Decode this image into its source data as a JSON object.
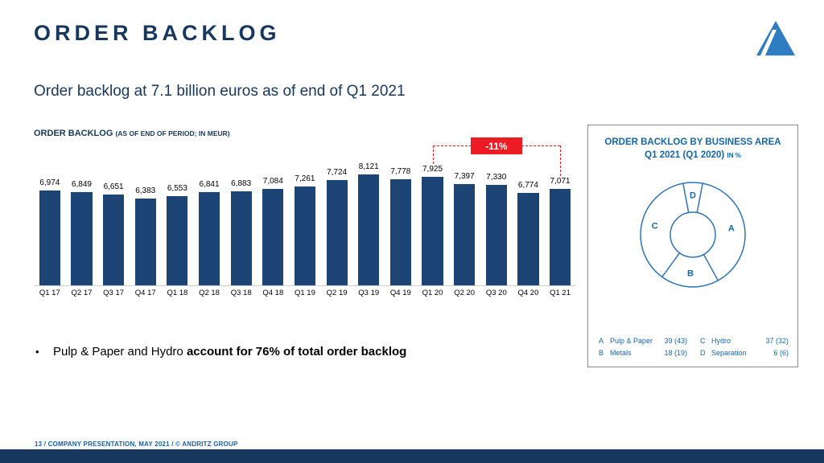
{
  "slide": {
    "title": "ORDER BACKLOG",
    "subtitle": "Order backlog at 7.1 billion euros as of end of Q1 2021",
    "bullet": {
      "text": "Pulp & Paper and Hydro ",
      "bold_text": "account for 76% of total order backlog"
    },
    "footer": "13 / COMPANY PRESENTATION, MAY 2021 / © ANDRITZ GROUP"
  },
  "colors": {
    "navy": "#17375e",
    "bar_blue": "#1c4474",
    "panel_blue": "#1566ab",
    "donut_stroke": "#2f74b8",
    "red": "#ed1c24"
  },
  "chart_data": [
    {
      "type": "bar",
      "title": "ORDER BACKLOG",
      "title_suffix": "(AS OF END OF PERIOD; IN MEUR)",
      "categories": [
        "Q1 17",
        "Q2 17",
        "Q3 17",
        "Q4 17",
        "Q1 18",
        "Q2 18",
        "Q3 18",
        "Q4 18",
        "Q1 19",
        "Q2 19",
        "Q3 19",
        "Q4 19",
        "Q1 20",
        "Q2 20",
        "Q3 20",
        "Q4 20",
        "Q1 21"
      ],
      "values": [
        6974,
        6849,
        6651,
        6383,
        6553,
        6841,
        6883,
        7084,
        7261,
        7724,
        8121,
        7778,
        7925,
        7397,
        7330,
        6774,
        7071
      ],
      "ylim": [
        0,
        8121
      ],
      "grid": false,
      "legend_position": "none",
      "annotation": {
        "label": "-11%",
        "from_category": "Q1 20",
        "to_category": "Q1 21"
      }
    },
    {
      "type": "pie",
      "donut": true,
      "title": "ORDER BACKLOG BY BUSINESS AREA",
      "subtitle": "Q1 2021 (Q1 2020)",
      "subtitle_suffix": "IN %",
      "segments": [
        {
          "key": "A",
          "name": "Pulp & Paper",
          "value": 39,
          "prev_value": 43
        },
        {
          "key": "B",
          "name": "Metals",
          "value": 18,
          "prev_value": 19
        },
        {
          "key": "C",
          "name": "Hydro",
          "value": 37,
          "prev_value": 32
        },
        {
          "key": "D",
          "name": "Separation",
          "value": 6,
          "prev_value": 6
        }
      ],
      "legend_position": "bottom"
    }
  ]
}
